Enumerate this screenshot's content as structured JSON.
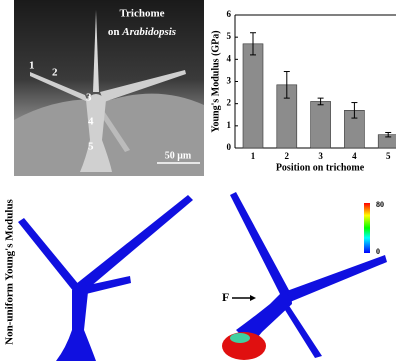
{
  "chart_data": {
    "type": "bar",
    "xlabel": "Position on trichome",
    "ylabel": "Young's Modulus (GPa)",
    "categories": [
      "1",
      "2",
      "3",
      "4",
      "5"
    ],
    "series": [
      {
        "color": "#8c8c8c",
        "values": [
          4.7,
          2.85,
          2.1,
          1.7,
          0.6
        ],
        "errors": [
          0.5,
          0.6,
          0.15,
          0.35,
          0.1
        ]
      }
    ],
    "ylim": [
      0,
      6
    ],
    "yticks": [
      0,
      1,
      2,
      3,
      4,
      5,
      6
    ]
  },
  "sem_image": {
    "title_line1": "Trichome",
    "title_line2_prefix": "on ",
    "title_line2_italic": "Arabidopsis",
    "position_labels": [
      "1",
      "2",
      "3",
      "4",
      "5"
    ],
    "scale_bar": "50 μm"
  },
  "simulation": {
    "side_label": "Non-uniform Young's Modulus",
    "force_label": "F",
    "colorbar_max": "80",
    "colorbar_min": "0"
  }
}
